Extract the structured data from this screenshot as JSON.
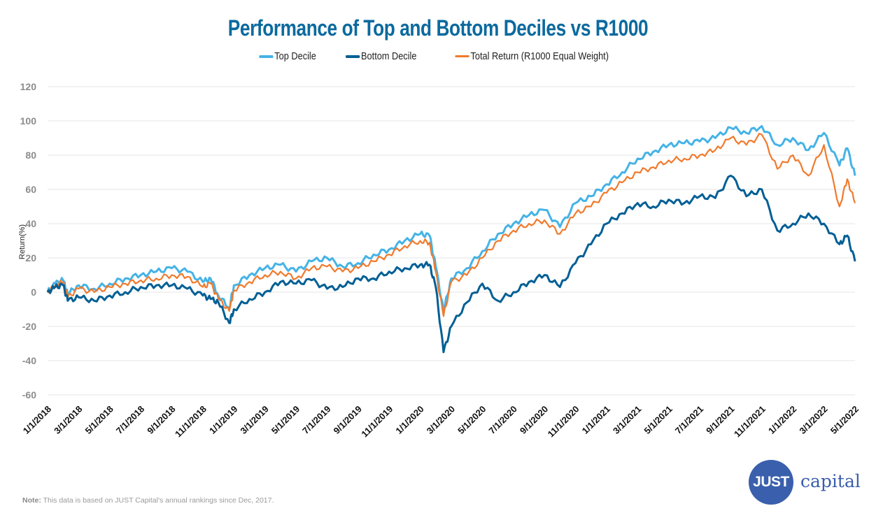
{
  "header": {
    "title": "Performance of Top and Bottom Deciles vs R1000"
  },
  "legend": [
    {
      "label": "Top Decile",
      "color": "#45b3e6"
    },
    {
      "label": "Bottom Decile",
      "color": "#005f95"
    },
    {
      "label": "Total Return (R1000 Equal Weight)",
      "color": "#f07a2c"
    }
  ],
  "axes": {
    "ylabel": "Return(%)",
    "yticks": [
      "120",
      "100",
      "80",
      "60",
      "40",
      "20",
      "0",
      "-20",
      "-40",
      "-60"
    ],
    "xticks": [
      "1/1/2018",
      "3/1/2018",
      "5/1/2018",
      "7/1/2018",
      "9/1/2018",
      "11/1/2018",
      "1/1/2019",
      "3/1/2019",
      "5/1/2019",
      "7/1/2019",
      "9/1/2019",
      "11/1/2019",
      "1/1/2020",
      "3/1/2020",
      "5/1/2020",
      "7/1/2020",
      "9/1/2020",
      "11/1/2020",
      "1/1/2021",
      "3/1/2021",
      "5/1/2021",
      "7/1/2021",
      "9/1/2021",
      "11/1/2021",
      "1/1/2022",
      "3/1/2022",
      "5/1/2022"
    ]
  },
  "footer": {
    "note_label": "Note:",
    "note_text": " This data is based on JUST Capital's annual rankings since Dec, 2017.",
    "logo_mark": "JUST",
    "logo_word": "capital"
  },
  "chart_data": {
    "type": "line",
    "title": "Performance of Top and Bottom Deciles vs R1000",
    "xlabel": "",
    "ylabel": "Return(%)",
    "ylim": [
      -60,
      120
    ],
    "grid": true,
    "legend_position": "top",
    "x_unit": "months since 1/1/2018",
    "x": [
      0,
      0.5,
      1,
      1.3,
      2,
      3,
      4,
      5,
      6,
      7,
      8,
      9,
      10,
      10.5,
      11,
      11.7,
      12,
      13,
      14,
      15,
      16,
      17,
      18,
      19,
      20,
      21,
      22,
      23,
      24,
      24.6,
      25,
      25.5,
      26,
      27,
      28,
      29,
      30,
      31,
      32,
      33,
      34,
      35,
      36,
      37,
      38,
      39,
      40,
      41,
      42,
      43,
      44,
      45,
      46,
      47,
      48,
      49,
      50,
      51,
      51.5,
      52
    ],
    "series": [
      {
        "name": "Top Decile",
        "color": "#45b3e6",
        "values": [
          0,
          5,
          7,
          -1,
          4,
          2,
          5,
          8,
          10,
          12,
          14,
          12,
          6,
          8,
          -2,
          -9,
          4,
          10,
          14,
          16,
          12,
          18,
          20,
          15,
          17,
          22,
          25,
          30,
          34,
          33,
          15,
          -11,
          8,
          14,
          24,
          34,
          40,
          45,
          48,
          38,
          52,
          56,
          63,
          70,
          78,
          82,
          86,
          87,
          88,
          90,
          96,
          93,
          97,
          86,
          90,
          83,
          93,
          74,
          84,
          68
        ]
      },
      {
        "name": "Bottom Decile",
        "color": "#005f95",
        "values": [
          0,
          3,
          4,
          -5,
          -3,
          -5,
          -2,
          0,
          3,
          4,
          4,
          2,
          -2,
          -4,
          -6,
          -18,
          -10,
          -4,
          0,
          6,
          5,
          7,
          2,
          3,
          8,
          8,
          12,
          14,
          16,
          16,
          3,
          -35,
          -20,
          -6,
          5,
          -5,
          0,
          6,
          10,
          3,
          17,
          28,
          40,
          46,
          52,
          50,
          54,
          52,
          56,
          55,
          68,
          56,
          60,
          36,
          40,
          46,
          40,
          28,
          33,
          18
        ]
      },
      {
        "name": "Total Return (R1000 Equal Weight)",
        "color": "#f07a2c",
        "values": [
          0,
          4,
          6,
          -3,
          2,
          0,
          3,
          5,
          7,
          8,
          10,
          9,
          3,
          5,
          -4,
          -11,
          1,
          6,
          10,
          12,
          8,
          14,
          15,
          12,
          14,
          18,
          22,
          27,
          30,
          29,
          12,
          -14,
          6,
          10,
          20,
          30,
          36,
          40,
          42,
          34,
          46,
          50,
          58,
          64,
          70,
          73,
          77,
          78,
          80,
          83,
          90,
          86,
          92,
          72,
          80,
          68,
          86,
          50,
          66,
          52
        ]
      }
    ]
  }
}
